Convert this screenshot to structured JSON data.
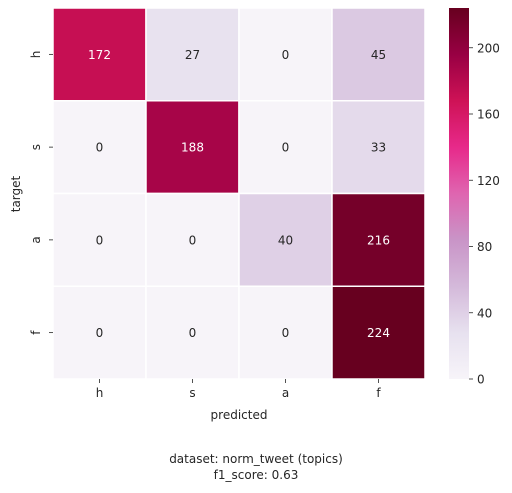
{
  "chart_data": {
    "type": "heatmap",
    "x_categories": [
      "h",
      "s",
      "a",
      "f"
    ],
    "y_categories": [
      "h",
      "s",
      "a",
      "f"
    ],
    "xlabel": "predicted",
    "ylabel": "target",
    "values": [
      [
        172,
        27,
        0,
        45
      ],
      [
        0,
        188,
        0,
        33
      ],
      [
        0,
        0,
        40,
        216
      ],
      [
        0,
        0,
        0,
        224
      ]
    ],
    "colorbar": {
      "range": [
        0,
        224
      ],
      "ticks": [
        0,
        40,
        80,
        120,
        160,
        200
      ],
      "colormap": "PuRd",
      "color_low": "#f7f4f9",
      "color_high": "#67001f"
    },
    "grid": false,
    "annotations": true
  },
  "caption": {
    "line1": "dataset: norm_tweet (topics)",
    "line2": "f1_score: 0.63"
  }
}
